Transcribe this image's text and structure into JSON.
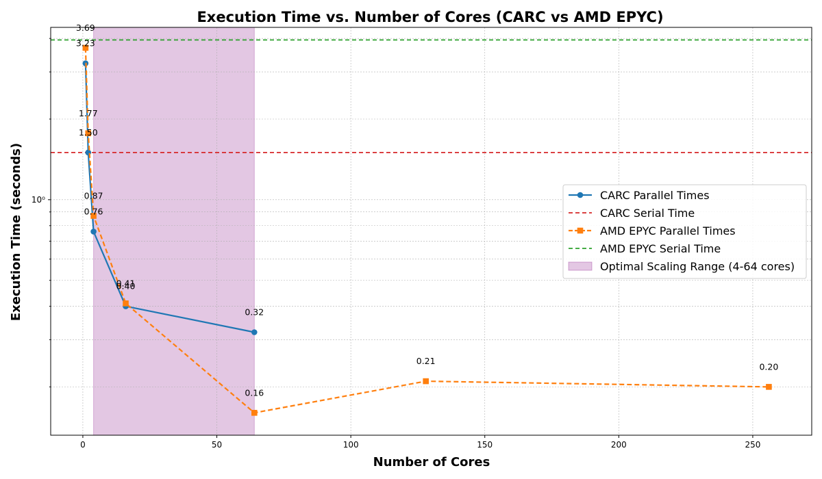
{
  "chart_data": {
    "type": "line",
    "title": "Execution Time vs. Number of Cores (CARC vs AMD EPYC)",
    "xlabel": "Number of Cores",
    "ylabel": "Execution Time (seconds)",
    "xlim": [
      -12,
      272
    ],
    "ylim": [
      0.132,
      4.4
    ],
    "yscale": "log",
    "x_ticks": [
      0,
      50,
      100,
      150,
      200,
      250
    ],
    "x_tick_labels": [
      "0",
      "50",
      "100",
      "150",
      "200",
      "250"
    ],
    "y_ticks": [
      1
    ],
    "y_tick_labels": [
      "10⁰"
    ],
    "grid": true,
    "legend_position": "center-right",
    "series": [
      {
        "name": "CARC Parallel Times",
        "color": "#1f77b4",
        "marker": "circle",
        "line_style": "solid",
        "x": [
          1,
          2,
          4,
          16,
          64
        ],
        "y": [
          3.23,
          1.5,
          0.76,
          0.4,
          0.32
        ],
        "labels": [
          "3.23",
          "1.50",
          "0.76",
          "0.40",
          "0.32"
        ]
      },
      {
        "name": "AMD EPYC Parallel Times",
        "color": "#ff7f0e",
        "marker": "square",
        "line_style": "dashed",
        "x": [
          1,
          2,
          4,
          16,
          64,
          128,
          256
        ],
        "y": [
          3.69,
          1.77,
          0.87,
          0.41,
          0.16,
          0.21,
          0.2
        ],
        "labels": [
          "3.69",
          "1.77",
          "0.87",
          "0.41",
          "0.16",
          "0.21",
          "0.20"
        ]
      }
    ],
    "reference_lines": [
      {
        "name": "CARC Serial Time",
        "color": "#d62728",
        "y": 1.5,
        "line_style": "dashed"
      },
      {
        "name": "AMD EPYC Serial Time",
        "color": "#2ca02c",
        "y": 3.95,
        "line_style": "dashed"
      }
    ],
    "shaded_region": {
      "name": "Optimal Scaling Range (4-64 cores)",
      "x_range": [
        4,
        64
      ],
      "color": "#800080",
      "opacity": 0.22
    }
  }
}
